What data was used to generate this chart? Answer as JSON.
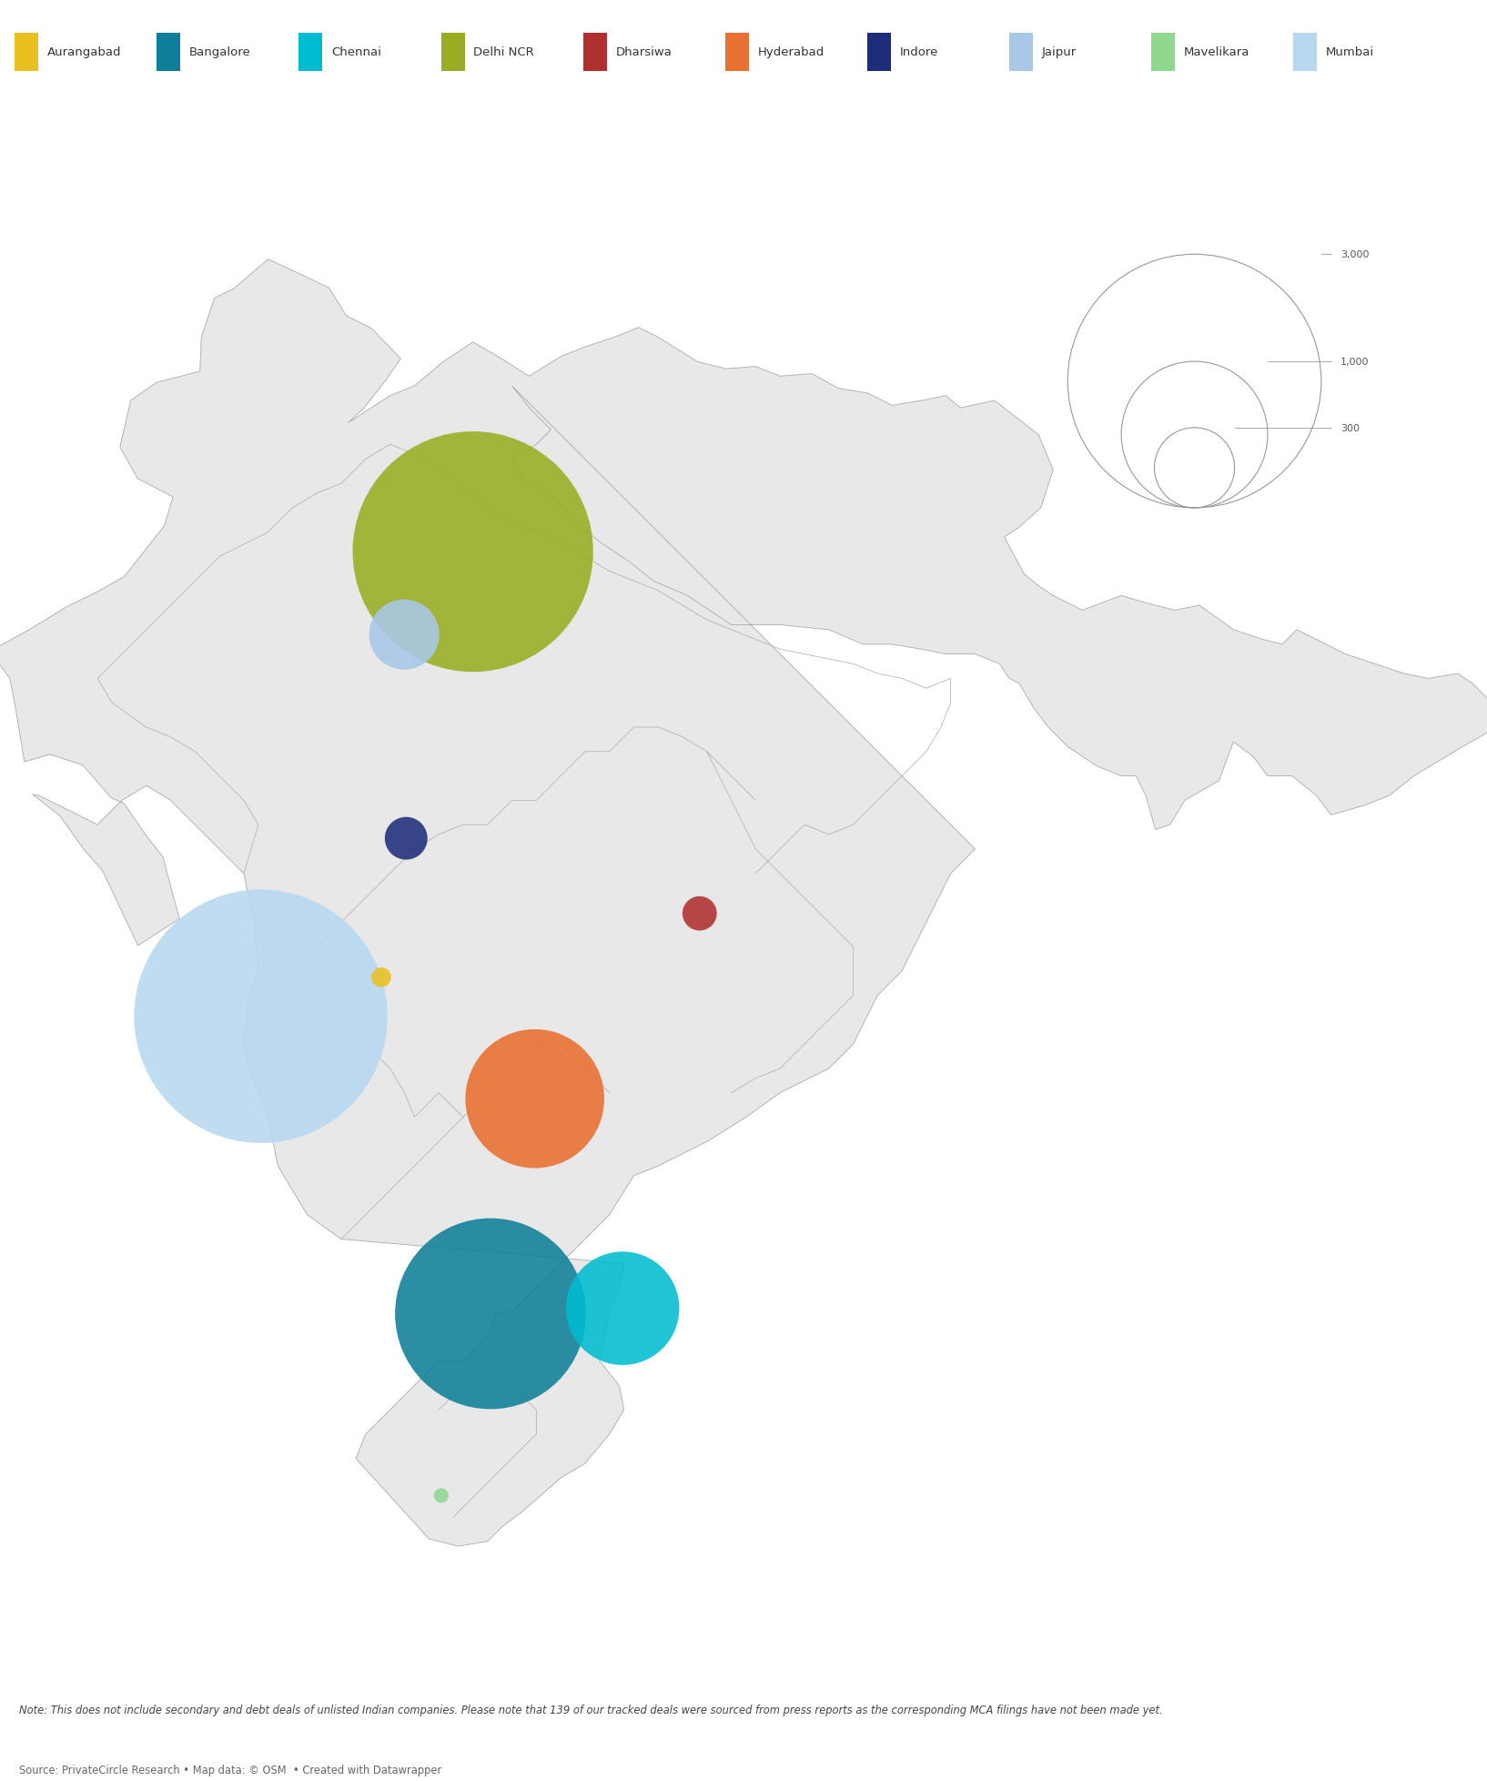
{
  "legend_items": [
    {
      "name": "Aurangabad",
      "color": "#e8c020"
    },
    {
      "name": "Bangalore",
      "color": "#0e7f96"
    },
    {
      "name": "Chennai",
      "color": "#00bcd0"
    },
    {
      "name": "Delhi NCR",
      "color": "#9aad22"
    },
    {
      "name": "Dharsiwa",
      "color": "#b03030"
    },
    {
      "name": "Hyderabad",
      "color": "#e87030"
    },
    {
      "name": "Indore",
      "color": "#1e2d7a"
    },
    {
      "name": "Jaipur",
      "color": "#a8c8e8"
    },
    {
      "name": "Mavelikara",
      "color": "#90d890"
    },
    {
      "name": "Mumbai",
      "color": "#b8d8f0"
    }
  ],
  "cities": [
    {
      "name": "Aurangabad",
      "lon": 75.32,
      "lat": 19.87,
      "value": 18,
      "color": "#e8c020"
    },
    {
      "name": "Bangalore",
      "lon": 77.56,
      "lat": 12.97,
      "value": 1700,
      "color": "#0e7f96"
    },
    {
      "name": "Chennai",
      "lon": 80.27,
      "lat": 13.08,
      "value": 600,
      "color": "#00bcd0"
    },
    {
      "name": "Delhi NCR",
      "lon": 77.2,
      "lat": 28.6,
      "value": 2700,
      "color": "#9aad22"
    },
    {
      "name": "Dharsiwa",
      "lon": 81.85,
      "lat": 21.18,
      "value": 55,
      "color": "#b03030"
    },
    {
      "name": "Hyderabad",
      "lon": 78.47,
      "lat": 17.38,
      "value": 900,
      "color": "#e87030"
    },
    {
      "name": "Indore",
      "lon": 75.83,
      "lat": 22.72,
      "value": 85,
      "color": "#1e2d7a"
    },
    {
      "name": "Jaipur",
      "lon": 75.79,
      "lat": 26.9,
      "value": 230,
      "color": "#a8c8e8"
    },
    {
      "name": "Mavelikara",
      "lon": 76.55,
      "lat": 9.24,
      "value": 10,
      "color": "#90d890"
    },
    {
      "name": "Mumbai",
      "lon": 72.85,
      "lat": 19.07,
      "value": 3000,
      "color": "#b8d8f0"
    }
  ],
  "legend_sizes": [
    300,
    1000,
    3000
  ],
  "map_color": "#e8e8e8",
  "map_edge_color": "#aaaaaa",
  "bg_color": "#ffffff",
  "note": "Note: This does not include secondary and debt deals of unlisted Indian companies. Please note that 139 of our tracked deals were sourced from press reports as the corresponding MCA filings have not been made yet.",
  "source": "Source: PrivateCircle Research • Map data: © OSM  • Created with Datawrapper",
  "xlim": [
    67.5,
    98.0
  ],
  "ylim": [
    6.0,
    37.5
  ],
  "bubble_scale": 2.6,
  "bubble_alpha": 0.88
}
